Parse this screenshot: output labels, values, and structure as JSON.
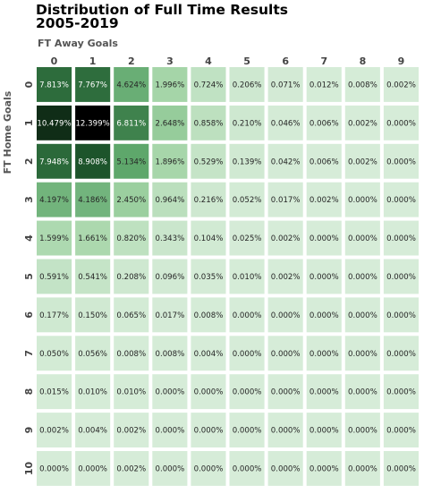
{
  "chart_data": {
    "type": "heatmap",
    "title_line1": "Distribution of Full Time Results",
    "title_line2": "2005-2019",
    "xlabel": "FT Away Goals",
    "ylabel": "FT Home Goals",
    "x": [
      "0",
      "1",
      "2",
      "3",
      "4",
      "5",
      "6",
      "7",
      "8",
      "9"
    ],
    "y": [
      "0",
      "1",
      "2",
      "3",
      "4",
      "5",
      "6",
      "7",
      "8",
      "9",
      "10"
    ],
    "colormap": [
      "#d6ecd8",
      "#a1d3a4",
      "#5ca66a",
      "#1f5a2e",
      "#000000"
    ],
    "vmax": 12.399,
    "values": [
      [
        7.813,
        7.767,
        4.624,
        1.996,
        0.724,
        0.206,
        0.071,
        0.012,
        0.008,
        0.002
      ],
      [
        10.479,
        12.399,
        6.811,
        2.648,
        0.858,
        0.21,
        0.046,
        0.006,
        0.002,
        0.0
      ],
      [
        7.948,
        8.908,
        5.134,
        1.896,
        0.529,
        0.139,
        0.042,
        0.006,
        0.002,
        0.0
      ],
      [
        4.197,
        4.186,
        2.45,
        0.964,
        0.216,
        0.052,
        0.017,
        0.002,
        0.0,
        0.0
      ],
      [
        1.599,
        1.661,
        0.82,
        0.343,
        0.104,
        0.025,
        0.002,
        0.0,
        0.0,
        0.0
      ],
      [
        0.591,
        0.541,
        0.208,
        0.096,
        0.035,
        0.01,
        0.002,
        0.0,
        0.0,
        0.0
      ],
      [
        0.177,
        0.15,
        0.065,
        0.017,
        0.008,
        0.0,
        0.0,
        0.0,
        0.0,
        0.0
      ],
      [
        0.05,
        0.056,
        0.008,
        0.008,
        0.004,
        0.0,
        0.0,
        0.0,
        0.0,
        0.0
      ],
      [
        0.015,
        0.01,
        0.01,
        0.0,
        0.0,
        0.0,
        0.0,
        0.0,
        0.0,
        0.0
      ],
      [
        0.002,
        0.004,
        0.002,
        0.0,
        0.0,
        0.0,
        0.0,
        0.0,
        0.0,
        0.0
      ],
      [
        0.0,
        0.0,
        0.002,
        0.0,
        0.0,
        0.0,
        0.0,
        0.0,
        0.0,
        0.0
      ]
    ],
    "labels": [
      [
        "7.813%",
        "7.767%",
        "4.624%",
        "1.996%",
        "0.724%",
        "0.206%",
        "0.071%",
        "0.012%",
        "0.008%",
        "0.002%"
      ],
      [
        "10.479%",
        "12.399%",
        "6.811%",
        "2.648%",
        "0.858%",
        "0.210%",
        "0.046%",
        "0.006%",
        "0.002%",
        "0.000%"
      ],
      [
        "7.948%",
        "8.908%",
        "5.134%",
        "1.896%",
        "0.529%",
        "0.139%",
        "0.042%",
        "0.006%",
        "0.002%",
        "0.000%"
      ],
      [
        "4.197%",
        "4.186%",
        "2.450%",
        "0.964%",
        "0.216%",
        "0.052%",
        "0.017%",
        "0.002%",
        "0.000%",
        "0.000%"
      ],
      [
        "1.599%",
        "1.661%",
        "0.820%",
        "0.343%",
        "0.104%",
        "0.025%",
        "0.002%",
        "0.000%",
        "0.000%",
        "0.000%"
      ],
      [
        "0.591%",
        "0.541%",
        "0.208%",
        "0.096%",
        "0.035%",
        "0.010%",
        "0.002%",
        "0.000%",
        "0.000%",
        "0.000%"
      ],
      [
        "0.177%",
        "0.150%",
        "0.065%",
        "0.017%",
        "0.008%",
        "0.000%",
        "0.000%",
        "0.000%",
        "0.000%",
        "0.000%"
      ],
      [
        "0.050%",
        "0.056%",
        "0.008%",
        "0.008%",
        "0.004%",
        "0.000%",
        "0.000%",
        "0.000%",
        "0.000%",
        "0.000%"
      ],
      [
        "0.015%",
        "0.010%",
        "0.010%",
        "0.000%",
        "0.000%",
        "0.000%",
        "0.000%",
        "0.000%",
        "0.000%",
        "0.000%"
      ],
      [
        "0.002%",
        "0.004%",
        "0.002%",
        "0.000%",
        "0.000%",
        "0.000%",
        "0.000%",
        "0.000%",
        "0.000%",
        "0.000%"
      ],
      [
        "0.000%",
        "0.000%",
        "0.002%",
        "0.000%",
        "0.000%",
        "0.000%",
        "0.000%",
        "0.000%",
        "0.000%",
        "0.000%"
      ]
    ]
  }
}
